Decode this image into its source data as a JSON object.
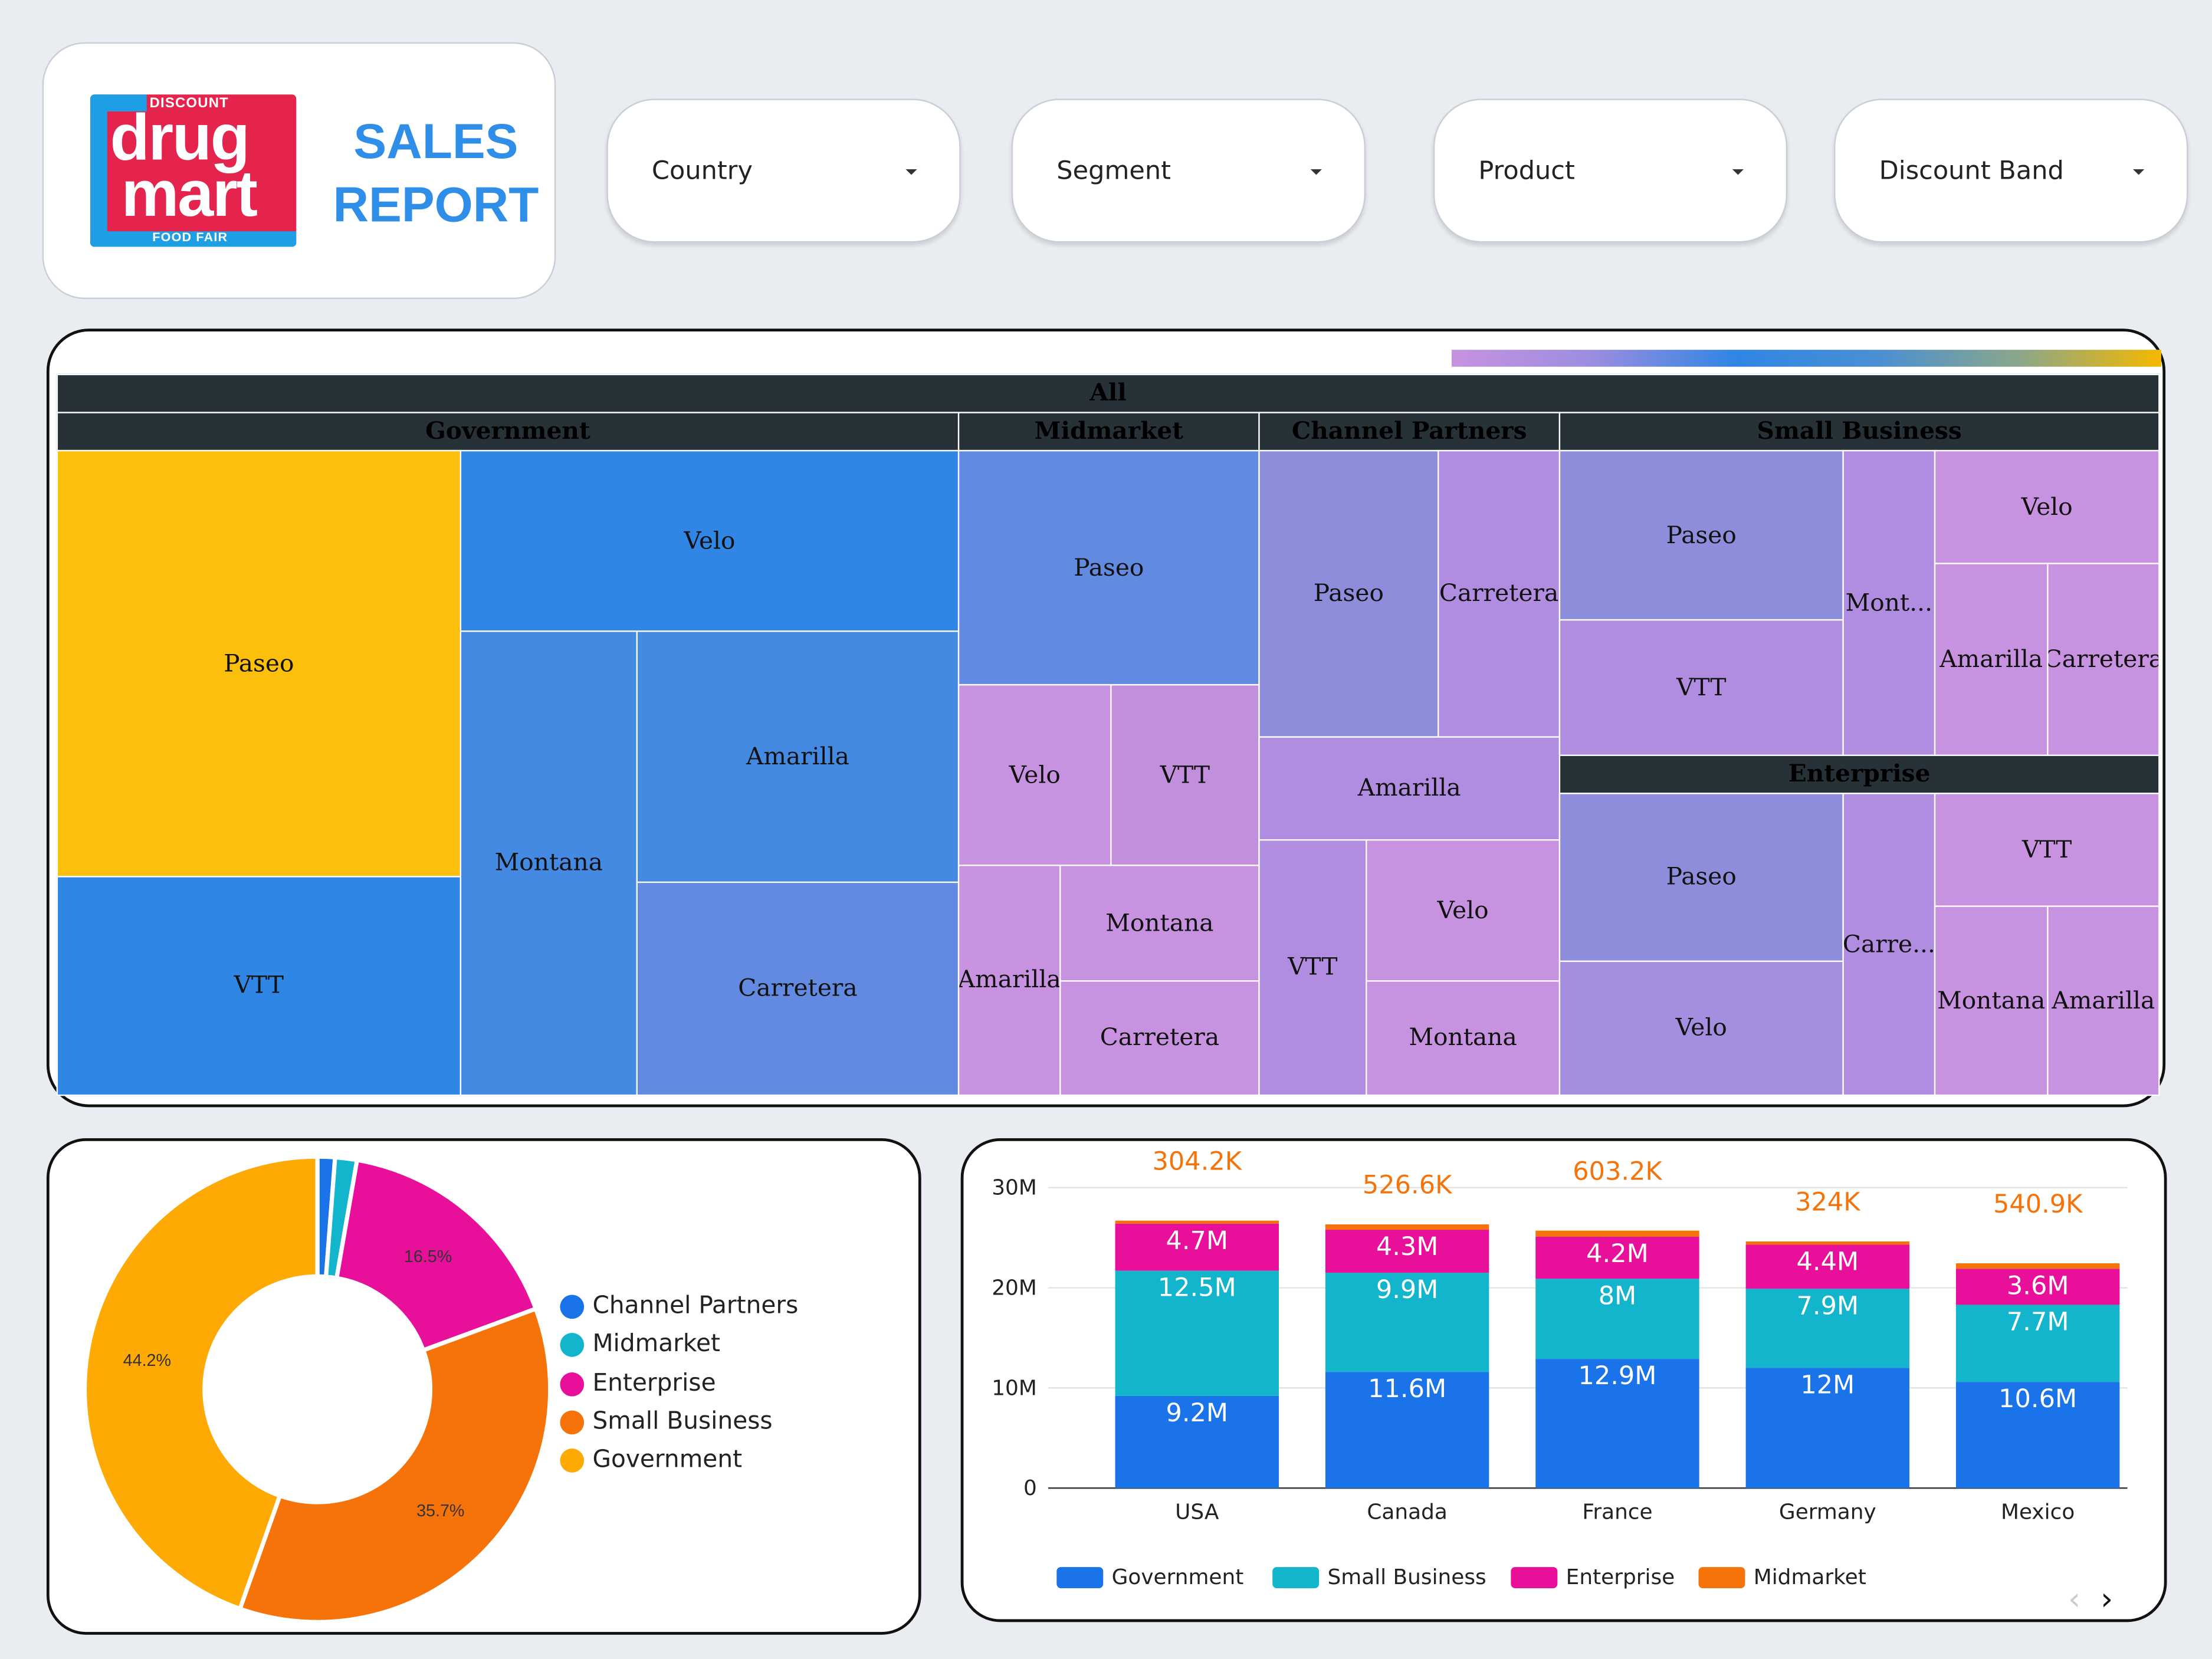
{
  "header": {
    "logo": {
      "top_text": "DISCOUNT",
      "line1": "drug",
      "line2": "mart",
      "bottom_text": "FOOD FAIR"
    },
    "title_line1": "SALES",
    "title_line2": "REPORT"
  },
  "filters": [
    {
      "label": "Country"
    },
    {
      "label": "Segment"
    },
    {
      "label": "Product"
    },
    {
      "label": "Discount Band"
    }
  ],
  "treemap": {
    "root_label": "All",
    "segments": [
      {
        "name": "Government",
        "products": [
          "Paseo",
          "VTT",
          "Velo",
          "Montana",
          "Amarilla",
          "Carretera"
        ]
      },
      {
        "name": "Midmarket",
        "products": [
          "Paseo",
          "Velo",
          "VTT",
          "Amarilla",
          "Montana",
          "Carretera"
        ]
      },
      {
        "name": "Channel Partners",
        "products": [
          "Paseo",
          "Carretera",
          "Amarilla",
          "VTT",
          "Velo",
          "Montana"
        ]
      },
      {
        "name": "Small Business",
        "products": [
          "Paseo",
          "VTT",
          "Mont...",
          "Velo",
          "Amarilla",
          "Carretera"
        ]
      },
      {
        "name": "Enterprise",
        "products": [
          "Paseo",
          "Velo",
          "Carre...",
          "VTT",
          "Montana",
          "Amarilla"
        ]
      }
    ],
    "colors": {
      "high": "#fbbf0c",
      "mid": "#2f86e4",
      "low": "#c792e0"
    }
  },
  "pie": {
    "legend": [
      "Channel Partners",
      "Midmarket",
      "Enterprise",
      "Small Business",
      "Government"
    ],
    "colors": {
      "Channel Partners": "#1a73e8",
      "Midmarket": "#12b5cb",
      "Enterprise": "#e8109a",
      "Small Business": "#f6730a",
      "Government": "#fea904"
    },
    "chart_data": {
      "type": "pie",
      "labels": [
        "Channel Partners",
        "Midmarket",
        "Enterprise",
        "Small Business",
        "Government"
      ],
      "values": [
        1.2,
        1.5,
        16.5,
        35.7,
        44.2
      ],
      "slice_labels": [
        "",
        "",
        "16.5%",
        "35.7%",
        "44.2%"
      ]
    }
  },
  "bars": {
    "chart_data": {
      "type": "bar",
      "stacked": true,
      "categories": [
        "USA",
        "Canada",
        "France",
        "Germany",
        "Mexico"
      ],
      "ylim": [
        0,
        30
      ],
      "y_ticks": [
        "0",
        "10M",
        "20M",
        "30M"
      ],
      "series": [
        {
          "name": "Government",
          "color": "#1a73e8",
          "values": [
            9.2,
            11.6,
            12.9,
            12.0,
            10.6
          ],
          "labels": [
            "9.2M",
            "11.6M",
            "12.9M",
            "12M",
            "10.6M"
          ]
        },
        {
          "name": "Small Business",
          "color": "#12b5cb",
          "values": [
            12.5,
            9.9,
            8.0,
            7.9,
            7.7
          ],
          "labels": [
            "12.5M",
            "9.9M",
            "8M",
            "7.9M",
            "7.7M"
          ]
        },
        {
          "name": "Enterprise",
          "color": "#e8109a",
          "values": [
            4.7,
            4.3,
            4.2,
            4.4,
            3.6
          ],
          "labels": [
            "4.7M",
            "4.3M",
            "4.2M",
            "4.4M",
            "3.6M"
          ]
        },
        {
          "name": "Midmarket",
          "color": "#f6730a",
          "values": [
            0.3042,
            0.5266,
            0.6032,
            0.3245,
            0.5409
          ],
          "labels": [
            "304.2K",
            "526.6K",
            "603.2K",
            "324K",
            "540.9K"
          ]
        }
      ]
    },
    "pager": {
      "prev": "‹",
      "next": "›"
    }
  }
}
